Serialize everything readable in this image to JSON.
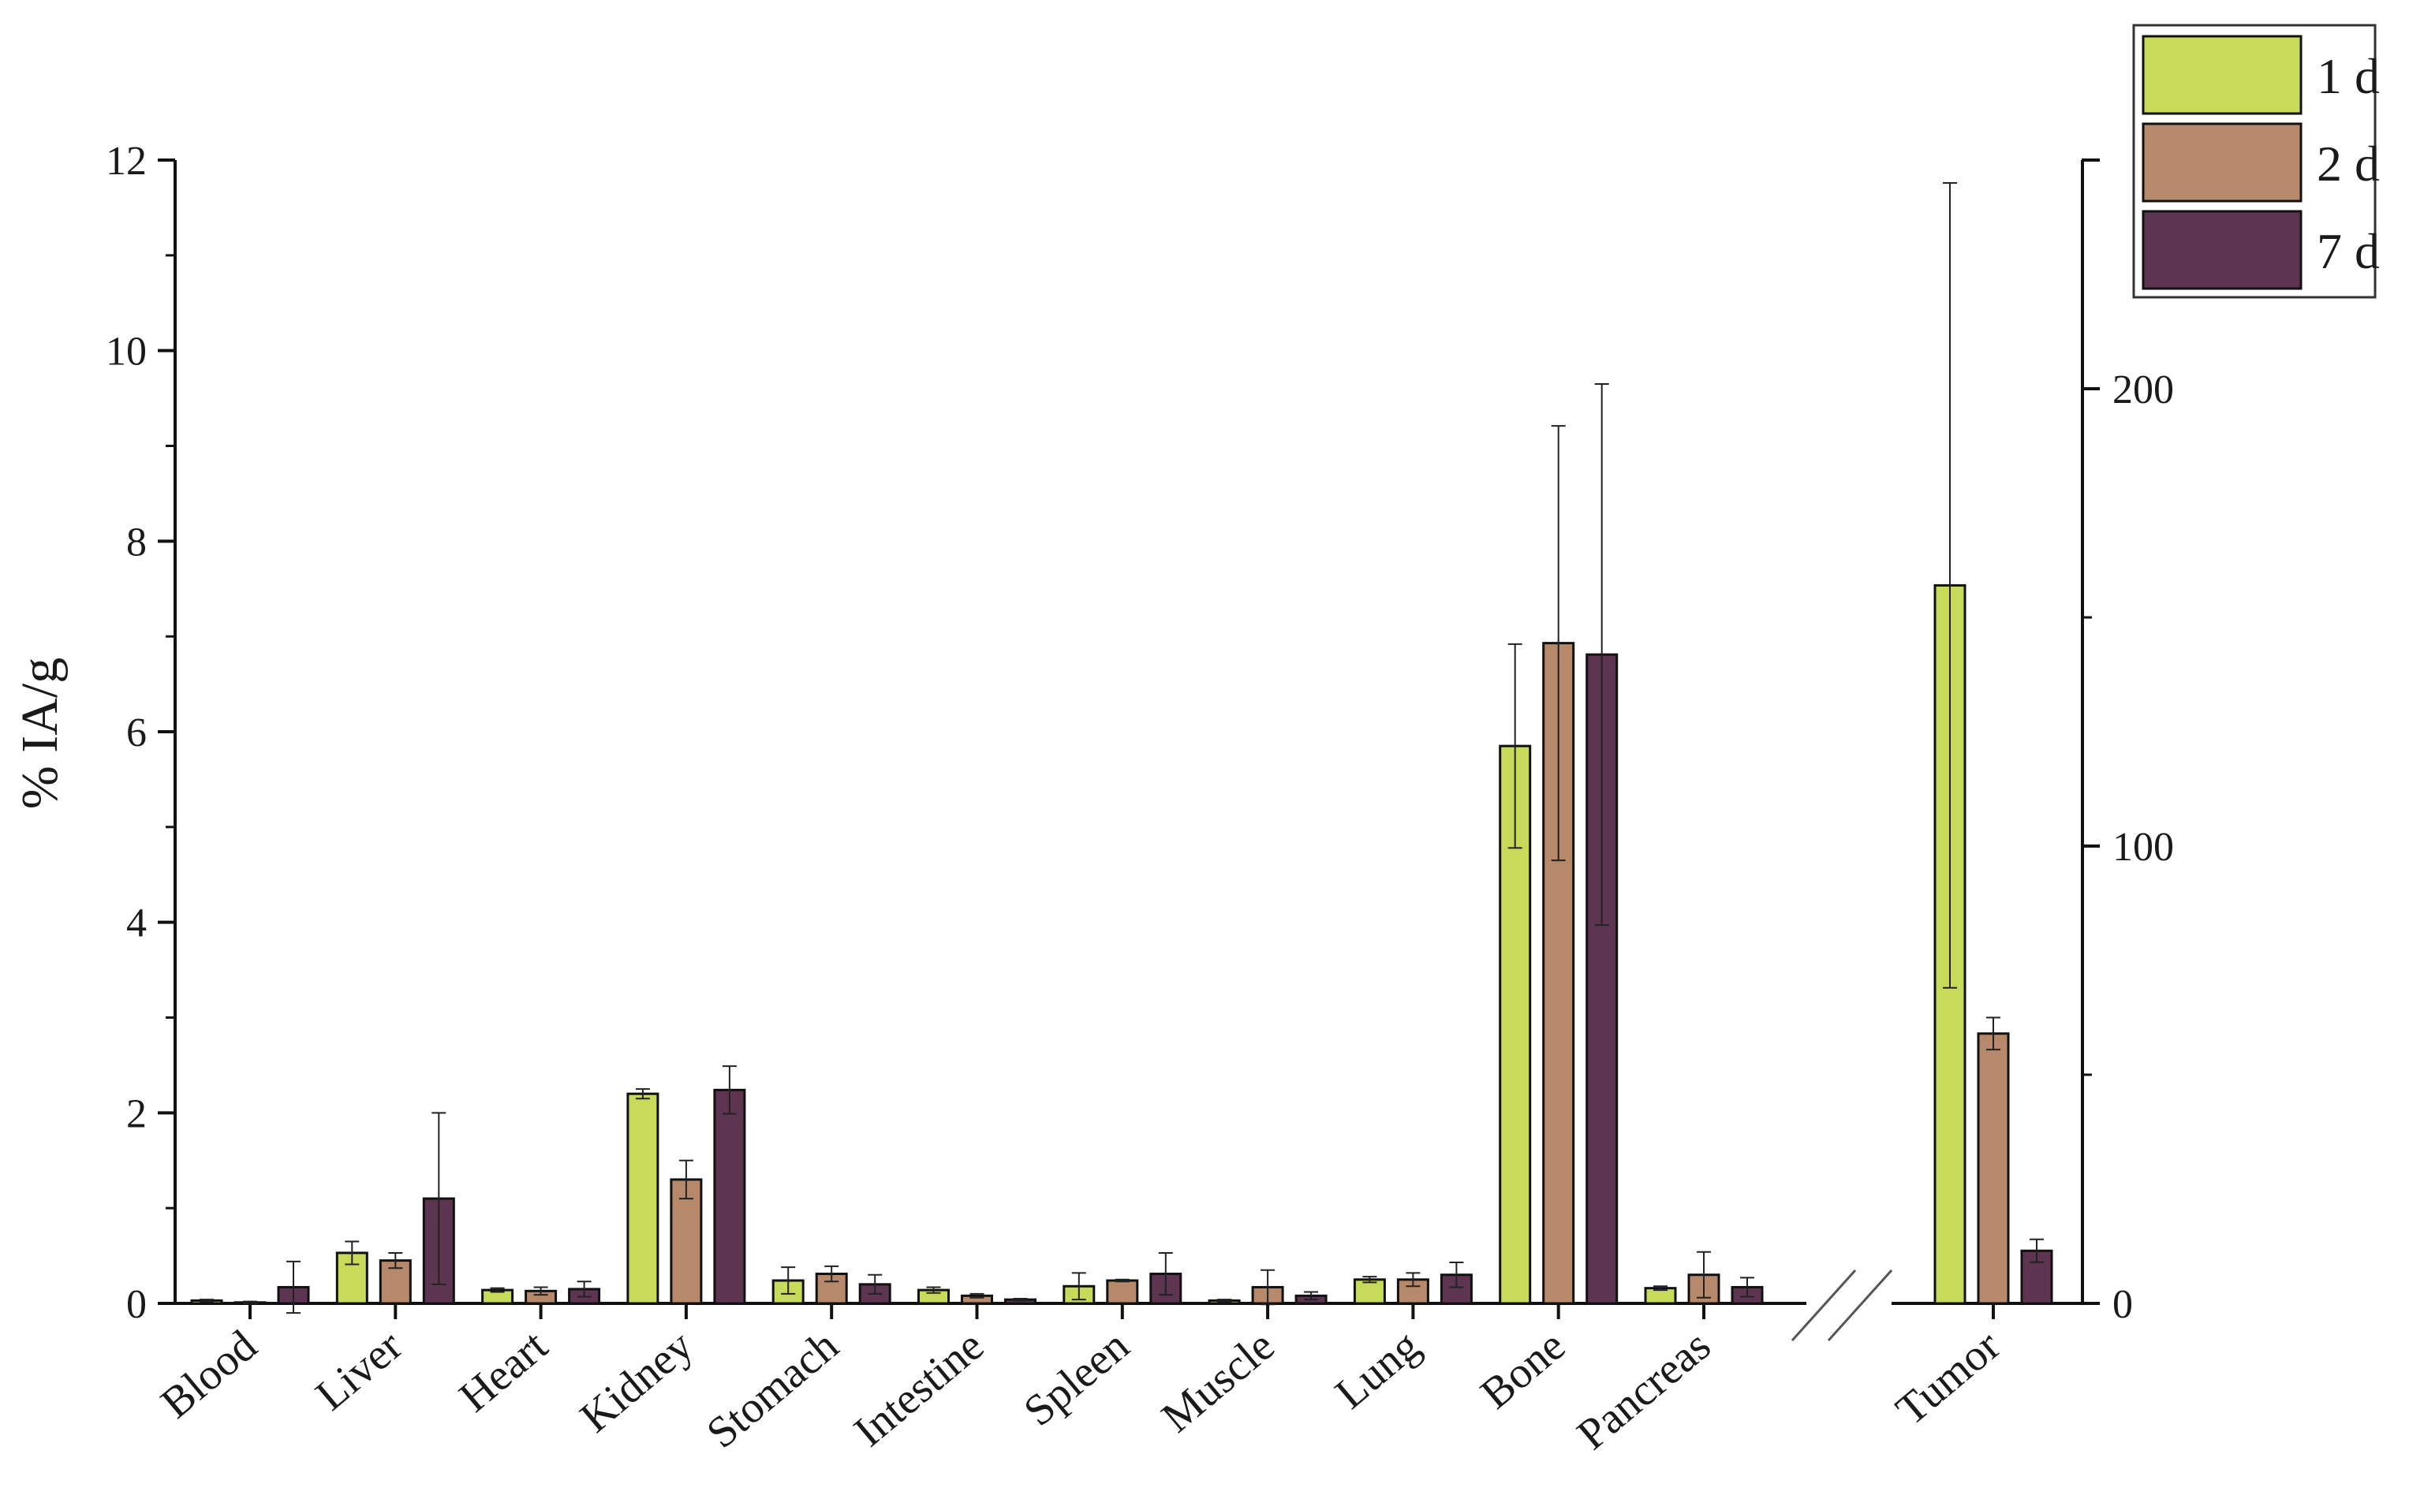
{
  "chart_data": {
    "type": "bar",
    "ylabel": "% IA/g",
    "legend": {
      "placement": "top-right",
      "entries": [
        "1 d",
        "2 d",
        "7 d"
      ]
    },
    "left_axis": {
      "ylim": [
        0,
        12
      ],
      "ticks": [
        "0",
        "2",
        "4",
        "6",
        "8",
        "10",
        "12"
      ],
      "categories": [
        "Blood",
        "Liver",
        "Heart",
        "Kidney",
        "Stomach",
        "Intestine",
        "Spleen",
        "Muscle",
        "Lung",
        "Bone",
        "Pancreas"
      ],
      "series": [
        {
          "name": "1 d",
          "color": "#c8da5a",
          "values": [
            0.03,
            0.53,
            0.14,
            2.2,
            0.24,
            0.14,
            0.18,
            0.03,
            0.25,
            5.85,
            0.16
          ],
          "errors": [
            0.01,
            0.12,
            0.02,
            0.05,
            0.14,
            0.03,
            0.14,
            0.01,
            0.03,
            1.07,
            0.02
          ]
        },
        {
          "name": "2 d",
          "color": "#b5896a",
          "values": [
            0.01,
            0.45,
            0.13,
            1.3,
            0.31,
            0.08,
            0.24,
            0.17,
            0.25,
            6.93,
            0.3
          ],
          "errors": [
            0.01,
            0.08,
            0.04,
            0.2,
            0.08,
            0.02,
            0.01,
            0.18,
            0.07,
            2.28,
            0.24
          ]
        },
        {
          "name": "7 d",
          "color": "#5e3551",
          "values": [
            0.17,
            1.1,
            0.15,
            2.24,
            0.2,
            0.04,
            0.31,
            0.08,
            0.3,
            6.81,
            0.17
          ],
          "errors": [
            0.27,
            0.9,
            0.08,
            0.25,
            0.1,
            0.01,
            0.22,
            0.04,
            0.13,
            2.84,
            0.1
          ]
        }
      ]
    },
    "right_axis": {
      "ylim": [
        0,
        250
      ],
      "ticks": [
        "0",
        "100",
        "200"
      ],
      "categories": [
        "Tumor"
      ],
      "series": [
        {
          "name": "1 d",
          "color": "#c8da5a",
          "values": [
            157
          ],
          "errors": [
            88
          ]
        },
        {
          "name": "2 d",
          "color": "#b5896a",
          "values": [
            59
          ],
          "errors": [
            3.5
          ]
        },
        {
          "name": "7 d",
          "color": "#5e3551",
          "values": [
            11.5
          ],
          "errors": [
            2.5
          ]
        }
      ]
    },
    "axis_break": true
  }
}
